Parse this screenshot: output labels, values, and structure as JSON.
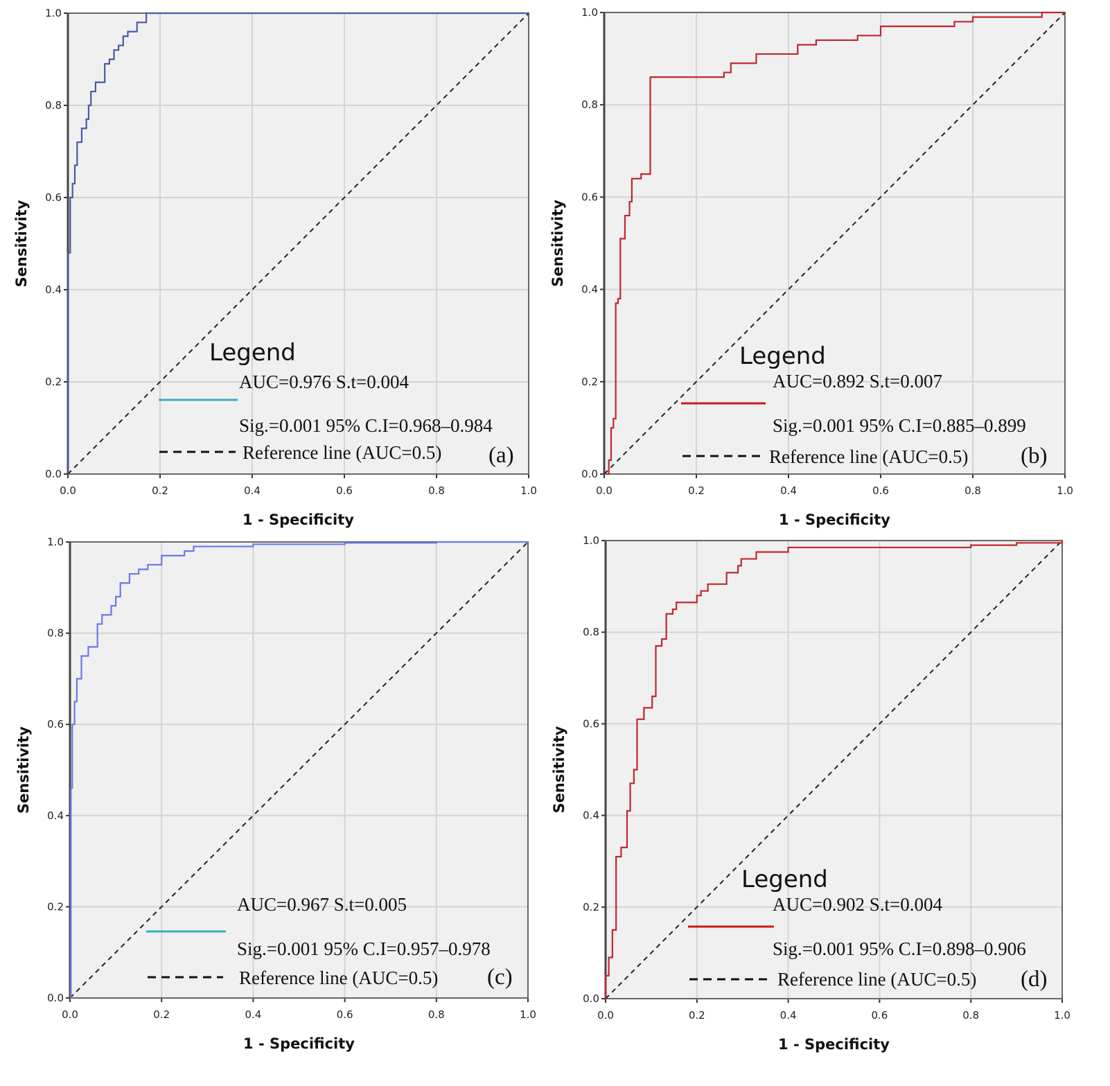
{
  "chart_data": [
    {
      "type": "line",
      "panel_label": "(a)",
      "xlabel": "1 - Specificity",
      "ylabel": "Sensitivity",
      "xlim": [
        0,
        1
      ],
      "ylim": [
        0,
        1
      ],
      "grid": true,
      "xticks": [
        "0.0",
        "0.2",
        "0.4",
        "0.6",
        "0.8",
        "1.0"
      ],
      "yticks": [
        "0.0",
        "0.2",
        "0.4",
        "0.6",
        "0.8",
        "1.0"
      ],
      "legend_title": "Legend",
      "legend": [
        "AUC=0.976 S.t=0.004",
        "Sig.=0.001 95% C.I=0.968–0.984",
        "Reference line (AUC=0.5)"
      ],
      "curve_color": "#4a58a8",
      "legend_color": "#3aaac8",
      "points": [
        [
          0,
          0
        ],
        [
          0,
          0.48
        ],
        [
          0.005,
          0.5
        ],
        [
          0.005,
          0.6
        ],
        [
          0.01,
          0.63
        ],
        [
          0.015,
          0.67
        ],
        [
          0.02,
          0.72
        ],
        [
          0.03,
          0.75
        ],
        [
          0.04,
          0.77
        ],
        [
          0.045,
          0.8
        ],
        [
          0.05,
          0.83
        ],
        [
          0.06,
          0.85
        ],
        [
          0.08,
          0.86
        ],
        [
          0.08,
          0.89
        ],
        [
          0.09,
          0.9
        ],
        [
          0.1,
          0.92
        ],
        [
          0.11,
          0.93
        ],
        [
          0.12,
          0.95
        ],
        [
          0.13,
          0.96
        ],
        [
          0.15,
          0.98
        ],
        [
          0.17,
          1
        ],
        [
          1,
          1
        ]
      ]
    },
    {
      "type": "line",
      "panel_label": "(b)",
      "xlabel": "1 - Specificity",
      "ylabel": "Sensitivity",
      "xlim": [
        0,
        1
      ],
      "ylim": [
        0,
        1
      ],
      "grid": true,
      "xticks": [
        "0.0",
        "0.2",
        "0.4",
        "0.6",
        "0.8",
        "1.0"
      ],
      "yticks": [
        "0.0",
        "0.2",
        "0.4",
        "0.6",
        "0.8",
        "1.0"
      ],
      "legend_title": "Legend",
      "legend": [
        "AUC=0.892 S.t=0.007",
        "Sig.=0.001 95% C.I=0.885–0.899",
        "Reference line (AUC=0.5)"
      ],
      "curve_color": "#c0272d",
      "legend_color": "#d01818",
      "points": [
        [
          0,
          0
        ],
        [
          0.01,
          0.02
        ],
        [
          0.01,
          0.03
        ],
        [
          0.015,
          0.1
        ],
        [
          0.02,
          0.12
        ],
        [
          0.025,
          0.37
        ],
        [
          0.03,
          0.38
        ],
        [
          0.035,
          0.51
        ],
        [
          0.045,
          0.56
        ],
        [
          0.055,
          0.59
        ],
        [
          0.06,
          0.64
        ],
        [
          0.08,
          0.65
        ],
        [
          0.1,
          0.66
        ],
        [
          0.1,
          0.86
        ],
        [
          0.25,
          0.86
        ],
        [
          0.26,
          0.87
        ],
        [
          0.275,
          0.89
        ],
        [
          0.32,
          0.89
        ],
        [
          0.33,
          0.91
        ],
        [
          0.4,
          0.91
        ],
        [
          0.42,
          0.93
        ],
        [
          0.46,
          0.94
        ],
        [
          0.54,
          0.94
        ],
        [
          0.55,
          0.95
        ],
        [
          0.6,
          0.97
        ],
        [
          0.75,
          0.97
        ],
        [
          0.76,
          0.98
        ],
        [
          0.8,
          0.98
        ],
        [
          0.8,
          0.99
        ],
        [
          0.94,
          0.99
        ],
        [
          0.95,
          1
        ],
        [
          1,
          1
        ]
      ]
    },
    {
      "type": "line",
      "panel_label": "(c)",
      "xlabel": "1 - Specificity",
      "ylabel": "Sensitivity",
      "xlim": [
        0,
        1
      ],
      "ylim": [
        0,
        1
      ],
      "grid": true,
      "xticks": [
        "0.0",
        "0.2",
        "0.4",
        "0.6",
        "0.8",
        "1.0"
      ],
      "yticks": [
        "0.0",
        "0.2",
        "0.4",
        "0.6",
        "0.8",
        "1.0"
      ],
      "legend_title": "",
      "legend": [
        "AUC=0.967 S.t=0.005",
        "Sig.=0.001 95% C.I=0.957–0.978",
        "Reference line (AUC=0.5)"
      ],
      "curve_color": "#6a78e8",
      "legend_color": "#3aaac8",
      "points": [
        [
          0,
          0
        ],
        [
          0.002,
          0.46
        ],
        [
          0.005,
          0.6
        ],
        [
          0.01,
          0.65
        ],
        [
          0.015,
          0.7
        ],
        [
          0.025,
          0.75
        ],
        [
          0.04,
          0.77
        ],
        [
          0.06,
          0.78
        ],
        [
          0.06,
          0.82
        ],
        [
          0.07,
          0.84
        ],
        [
          0.09,
          0.86
        ],
        [
          0.1,
          0.88
        ],
        [
          0.11,
          0.91
        ],
        [
          0.13,
          0.93
        ],
        [
          0.15,
          0.94
        ],
        [
          0.17,
          0.95
        ],
        [
          0.2,
          0.97
        ],
        [
          0.25,
          0.98
        ],
        [
          0.27,
          0.99
        ],
        [
          0.4,
          0.995
        ],
        [
          0.6,
          0.998
        ],
        [
          0.8,
          1
        ],
        [
          1,
          1
        ]
      ]
    },
    {
      "type": "line",
      "panel_label": "(d)",
      "xlabel": "1 - Specificity",
      "ylabel": "Sensitivity",
      "xlim": [
        0,
        1
      ],
      "ylim": [
        0,
        1
      ],
      "grid": true,
      "xticks": [
        "0.0",
        "0.2",
        "0.4",
        "0.6",
        "0.8",
        "1.0"
      ],
      "yticks": [
        "0.0",
        "0.2",
        "0.4",
        "0.6",
        "0.8",
        "1.0"
      ],
      "legend_title": "Legend",
      "legend": [
        "AUC=0.902 S.t=0.004",
        "Sig.=0.001 95% C.I=0.898–0.906",
        "Reference line (AUC=0.5)"
      ],
      "curve_color": "#c0272d",
      "legend_color": "#d01818",
      "points": [
        [
          0,
          0
        ],
        [
          0,
          0.05
        ],
        [
          0.007,
          0.09
        ],
        [
          0.015,
          0.15
        ],
        [
          0.023,
          0.31
        ],
        [
          0.034,
          0.33
        ],
        [
          0.047,
          0.41
        ],
        [
          0.054,
          0.47
        ],
        [
          0.062,
          0.5
        ],
        [
          0.069,
          0.61
        ],
        [
          0.084,
          0.635
        ],
        [
          0.102,
          0.66
        ],
        [
          0.11,
          0.77
        ],
        [
          0.123,
          0.785
        ],
        [
          0.133,
          0.84
        ],
        [
          0.147,
          0.85
        ],
        [
          0.155,
          0.865
        ],
        [
          0.2,
          0.88
        ],
        [
          0.209,
          0.89
        ],
        [
          0.224,
          0.905
        ],
        [
          0.265,
          0.93
        ],
        [
          0.29,
          0.945
        ],
        [
          0.297,
          0.96
        ],
        [
          0.33,
          0.975
        ],
        [
          0.4,
          0.985
        ],
        [
          0.7,
          0.985
        ],
        [
          0.8,
          0.99
        ],
        [
          0.9,
          0.995
        ],
        [
          1,
          1
        ]
      ]
    }
  ]
}
